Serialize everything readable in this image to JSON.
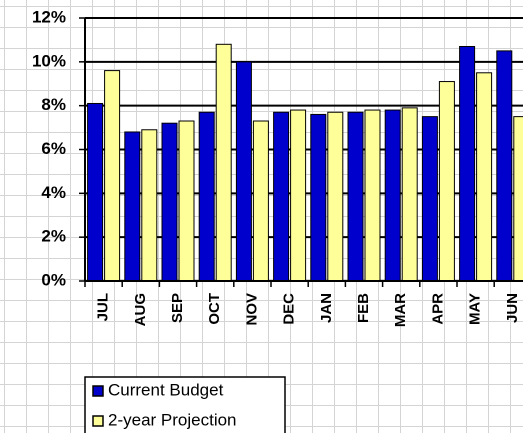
{
  "chart_data": {
    "type": "bar",
    "categories": [
      "JUL",
      "AUG",
      "SEP",
      "OCT",
      "NOV",
      "DEC",
      "JAN",
      "FEB",
      "MAR",
      "APR",
      "MAY",
      "JUN"
    ],
    "series": [
      {
        "name": "Current Budget",
        "color": "#0000cc",
        "values": [
          8.1,
          6.8,
          7.2,
          7.7,
          10.0,
          7.7,
          7.6,
          7.7,
          7.8,
          7.5,
          10.7,
          10.5
        ]
      },
      {
        "name": "2-year Projection",
        "color": "#ffff99",
        "values": [
          9.6,
          6.9,
          7.3,
          10.8,
          7.3,
          7.8,
          7.7,
          7.8,
          7.9,
          9.1,
          9.5,
          7.5
        ]
      }
    ],
    "ylim": [
      0,
      12
    ],
    "yticks": [
      {
        "value": 0,
        "label": "0%"
      },
      {
        "value": 2,
        "label": "2%"
      },
      {
        "value": 4,
        "label": "4%"
      },
      {
        "value": 6,
        "label": "6%"
      },
      {
        "value": 8,
        "label": "8%"
      },
      {
        "value": 10,
        "label": "10%"
      },
      {
        "value": 12,
        "label": "12%"
      }
    ],
    "grid": true
  }
}
